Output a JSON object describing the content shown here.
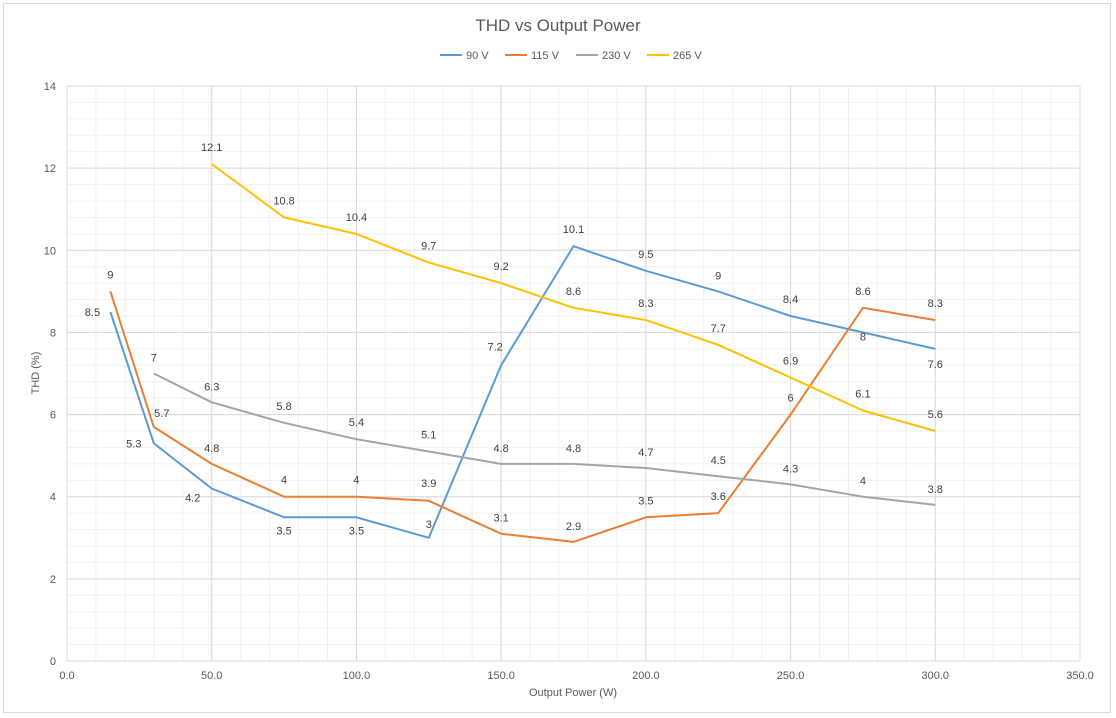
{
  "chart_data": {
    "type": "line",
    "title": "THD vs Output Power",
    "xlabel": "Output Power (W)",
    "ylabel": "THD (%)",
    "xlim": [
      0,
      350
    ],
    "ylim": [
      0,
      14
    ],
    "x_major_step": 50,
    "y_major_step": 2,
    "x_minor_step": 10,
    "y_minor_step": 0.4,
    "x_tick_labels": [
      "0.0",
      "50.0",
      "100.0",
      "150.0",
      "200.0",
      "250.0",
      "300.0",
      "350.0"
    ],
    "y_tick_labels": [
      "0",
      "2",
      "4",
      "6",
      "8",
      "10",
      "12",
      "14"
    ],
    "grid": true,
    "legend_position": "top",
    "series": [
      {
        "name": "90 V",
        "color": "#5b9bd5",
        "x": [
          15,
          30,
          50,
          75,
          100,
          125,
          150,
          175,
          200,
          225,
          250,
          275,
          300
        ],
        "values": [
          8.5,
          5.3,
          4.2,
          3.5,
          3.5,
          3,
          7.2,
          10.1,
          9.5,
          9,
          8.4,
          8,
          7.6
        ],
        "labels": [
          "8.5",
          "5.3",
          "4.2",
          "3.5",
          "3.5",
          "3",
          "7.2",
          "10.1",
          "9.5",
          "9",
          "8.4",
          "8",
          "7.6"
        ]
      },
      {
        "name": "115 V",
        "color": "#ed7d31",
        "x": [
          15,
          30,
          50,
          75,
          100,
          125,
          150,
          175,
          200,
          225,
          250,
          275,
          300
        ],
        "values": [
          9,
          5.7,
          4.8,
          4,
          4,
          3.9,
          3.1,
          2.9,
          3.5,
          3.6,
          6,
          8.6,
          8.3
        ],
        "labels": [
          "9",
          "5.7",
          "4.8",
          "4",
          "4",
          "3.9",
          "3.1",
          "2.9",
          "3.5",
          "3.6",
          "6",
          "8.6",
          "8.3"
        ]
      },
      {
        "name": "230 V",
        "color": "#a5a5a5",
        "x": [
          30,
          50,
          75,
          100,
          125,
          150,
          175,
          200,
          225,
          250,
          275,
          300
        ],
        "values": [
          7,
          6.3,
          5.8,
          5.4,
          5.1,
          4.8,
          4.8,
          4.7,
          4.5,
          4.3,
          4,
          3.8
        ],
        "labels": [
          "7",
          "6.3",
          "5.8",
          "5.4",
          "5.1",
          "4.8",
          "4.8",
          "4.7",
          "4.5",
          "4.3",
          "4",
          "3.8"
        ]
      },
      {
        "name": "265 V",
        "color": "#ffc000",
        "x": [
          50,
          75,
          100,
          125,
          150,
          175,
          200,
          225,
          250,
          275,
          300
        ],
        "values": [
          12.1,
          10.8,
          10.4,
          9.7,
          9.2,
          8.6,
          8.3,
          7.7,
          6.9,
          6.1,
          5.6
        ],
        "labels": [
          "12.1",
          "10.8",
          "10.4",
          "9.7",
          "9.2",
          "8.6",
          "8.3",
          "7.7",
          "6.9",
          "6.1",
          "5.6"
        ]
      }
    ]
  }
}
